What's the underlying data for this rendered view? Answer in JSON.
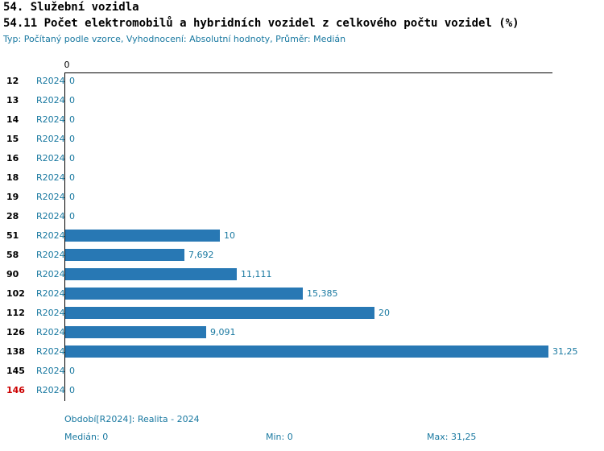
{
  "header": {
    "title1": "54. Služební vozidla",
    "title2": "54.11 Počet elektromobilů a hybridních vozidel z celkového počtu vozidel (%)",
    "subtitle": "Typ: Počítaný podle vzorce, Vyhodnocení: Absolutní hodnoty, Průměr: Medián"
  },
  "chart_data": {
    "type": "bar",
    "orientation": "horizontal",
    "title": "54.11 Počet elektromobilů a hybridních vozidel z celkového počtu vozidel (%)",
    "axis_origin_label": "0",
    "series_label": "R2024",
    "categories": [
      "12",
      "13",
      "14",
      "15",
      "16",
      "18",
      "19",
      "28",
      "51",
      "58",
      "90",
      "102",
      "112",
      "126",
      "138",
      "145",
      "146"
    ],
    "values": [
      0,
      0,
      0,
      0,
      0,
      0,
      0,
      0,
      10,
      7.692,
      11.111,
      15.385,
      20,
      9.091,
      31.25,
      0,
      0
    ],
    "value_labels": [
      "0",
      "0",
      "0",
      "0",
      "0",
      "0",
      "0",
      "0",
      "10",
      "7,692",
      "11,111",
      "15,385",
      "20",
      "9,091",
      "31,25",
      "0",
      "0"
    ],
    "xlim": [
      0,
      31.25
    ],
    "grid": false,
    "legend": "none",
    "bar_color": "#2878b4",
    "label_color": "#1878a0",
    "highlight_category": "146",
    "highlight_color": "#cc0000"
  },
  "footer": {
    "period": "Období[R2024]: Realita - 2024",
    "median": "Medián: 0",
    "min": "Min: 0",
    "max": "Max: 31,25"
  }
}
